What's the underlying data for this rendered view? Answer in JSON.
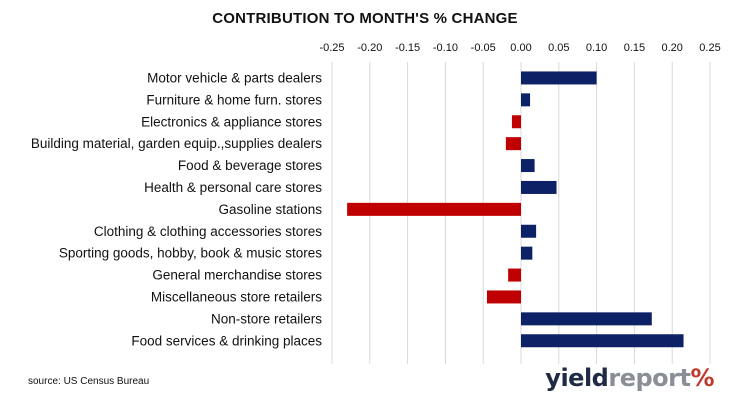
{
  "chart_data": {
    "type": "bar",
    "orientation": "horizontal",
    "title": "CONTRIBUTION TO MONTH'S % CHANGE",
    "categories": [
      "Motor vehicle & parts dealers",
      "Furniture & home furn. stores",
      "Electronics & appliance stores",
      "Building material, garden equip.,supplies dealers",
      "Food & beverage stores",
      "Health & personal care stores",
      "Gasoline stations",
      "Clothing & clothing accessories stores",
      "Sporting goods, hobby, book & music stores",
      "General merchandise stores",
      "Miscellaneous store retailers",
      "Non-store retailers",
      "Food services & drinking places"
    ],
    "values": [
      0.1,
      0.012,
      -0.012,
      -0.02,
      0.018,
      0.047,
      -0.23,
      0.02,
      0.015,
      -0.017,
      -0.045,
      0.173,
      0.215
    ],
    "xlim": [
      -0.25,
      0.25
    ],
    "xticks": [
      "-0.25",
      "-0.20",
      "-0.15",
      "-0.10",
      "-0.05",
      "0.00",
      "0.05",
      "0.10",
      "0.15",
      "0.20",
      "0.25"
    ],
    "xtick_values": [
      -0.25,
      -0.2,
      -0.15,
      -0.1,
      -0.05,
      0,
      0.05,
      0.1,
      0.15,
      0.2,
      0.25
    ],
    "grid": "vertical",
    "positive_color": "#0d2266",
    "negative_color": "#c00000",
    "grid_color": "#d9d9d9"
  },
  "source": "source: US Census Bureau",
  "brand": {
    "part1": "yield",
    "part2": "report",
    "part3": "%"
  }
}
